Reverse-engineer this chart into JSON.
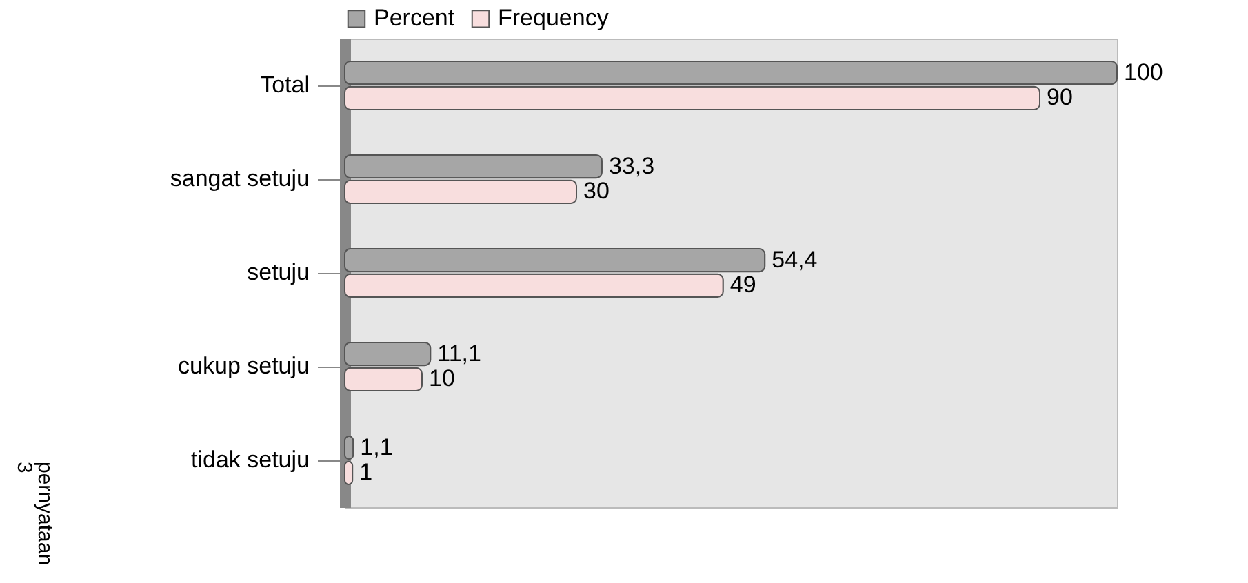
{
  "chart_data": {
    "type": "bar",
    "orientation": "horizontal",
    "categories": [
      "Total",
      "sangat setuju",
      "setuju",
      "cukup setuju",
      "tidak setuju"
    ],
    "series": [
      {
        "name": "Percent",
        "color": "#a6a6a6",
        "values": [
          100,
          33.3,
          54.4,
          11.1,
          1.1
        ],
        "value_labels": [
          "100",
          "33,3",
          "54,4",
          "11,1",
          "1,1"
        ]
      },
      {
        "name": "Frequency",
        "color": "#f8dede",
        "values": [
          90,
          30,
          49,
          10,
          1
        ],
        "value_labels": [
          "90",
          "30",
          "49",
          "10",
          "1"
        ]
      }
    ],
    "legend": "top",
    "annotations": [
      "pernyataan 3"
    ]
  }
}
